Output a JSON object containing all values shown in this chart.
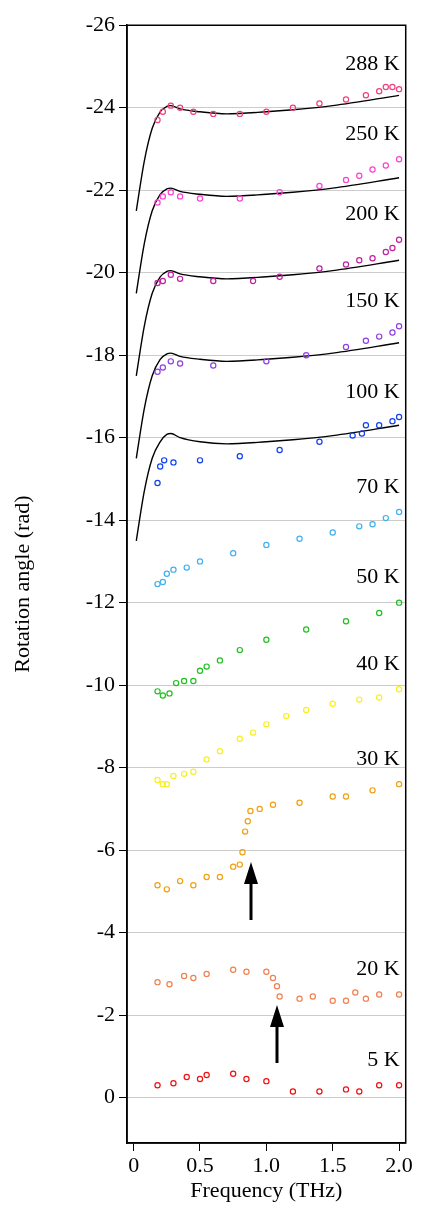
{
  "chart_data": {
    "type": "scatter",
    "xlabel": "Frequency (THz)",
    "ylabel": "Rotation angle (rad)",
    "xlim": [
      -0.05,
      2.05
    ],
    "ylim": [
      1.1,
      -26
    ],
    "xticks": [
      0,
      0.5,
      {
        "value": 1,
        "label": "1.0"
      },
      1.5,
      {
        "value": 2,
        "label": "2.0"
      }
    ],
    "yticks": [
      -26,
      -24,
      -22,
      -20,
      -18,
      -16,
      -14,
      -12,
      -10,
      -8,
      -6,
      -4,
      -2,
      0
    ],
    "grid": "y",
    "marker": "circle",
    "legend": false,
    "series": [
      {
        "name": "288 K",
        "color": "#f04080",
        "x": [
          0.18,
          0.22,
          0.28,
          0.35,
          0.45,
          0.6,
          0.8,
          1.0,
          1.2,
          1.4,
          1.6,
          1.75,
          1.85,
          1.9,
          1.95,
          2.0
        ],
        "values": [
          -23.7,
          -23.9,
          -24.05,
          -24.0,
          -23.9,
          -23.85,
          -23.85,
          -23.9,
          -24.0,
          -24.1,
          -24.2,
          -24.3,
          -24.4,
          -24.5,
          -24.5,
          -24.45
        ]
      },
      {
        "name": "250 K",
        "color": "#ff40d0",
        "x": [
          0.18,
          0.22,
          0.28,
          0.35,
          0.5,
          0.8,
          1.1,
          1.4,
          1.6,
          1.7,
          1.8,
          1.9,
          2.0
        ],
        "values": [
          -21.7,
          -21.85,
          -21.95,
          -21.85,
          -21.8,
          -21.8,
          -21.95,
          -22.1,
          -22.25,
          -22.35,
          -22.5,
          -22.6,
          -22.75
        ]
      },
      {
        "name": "200 K",
        "color": "#c020a0",
        "x": [
          0.18,
          0.22,
          0.28,
          0.35,
          0.6,
          0.9,
          1.1,
          1.4,
          1.6,
          1.7,
          1.8,
          1.9,
          1.95,
          2.0
        ],
        "values": [
          -19.75,
          -19.8,
          -19.95,
          -19.85,
          -19.8,
          -19.8,
          -19.9,
          -20.1,
          -20.2,
          -20.3,
          -20.35,
          -20.5,
          -20.6,
          -20.8
        ]
      },
      {
        "name": "150 K",
        "color": "#9040e0",
        "x": [
          0.18,
          0.22,
          0.28,
          0.35,
          0.6,
          1.0,
          1.3,
          1.6,
          1.75,
          1.85,
          1.95,
          2.0
        ],
        "values": [
          -17.6,
          -17.7,
          -17.85,
          -17.8,
          -17.75,
          -17.85,
          -18.0,
          -18.2,
          -18.35,
          -18.45,
          -18.55,
          -18.7
        ]
      },
      {
        "name": "100 K",
        "color": "#1040f0",
        "x": [
          0.18,
          0.2,
          0.23,
          0.3,
          0.5,
          0.8,
          1.1,
          1.4,
          1.65,
          1.72,
          1.75,
          1.85,
          1.95,
          2.0
        ],
        "values": [
          -14.9,
          -15.3,
          -15.45,
          -15.4,
          -15.45,
          -15.55,
          -15.7,
          -15.9,
          -16.05,
          -16.1,
          -16.3,
          -16.3,
          -16.4,
          -16.5
        ]
      },
      {
        "name": "70 K",
        "color": "#40b0f0",
        "x": [
          0.18,
          0.22,
          0.25,
          0.3,
          0.4,
          0.5,
          0.75,
          1.0,
          1.25,
          1.5,
          1.7,
          1.8,
          1.9,
          2.0
        ],
        "values": [
          -12.45,
          -12.5,
          -12.7,
          -12.8,
          -12.85,
          -13.0,
          -13.2,
          -13.4,
          -13.55,
          -13.7,
          -13.85,
          -13.9,
          -14.05,
          -14.2
        ]
      },
      {
        "name": "50 K",
        "color": "#20c020",
        "x": [
          0.18,
          0.22,
          0.27,
          0.32,
          0.38,
          0.45,
          0.5,
          0.55,
          0.65,
          0.8,
          1.0,
          1.3,
          1.6,
          1.85,
          2.0
        ],
        "values": [
          -9.85,
          -9.75,
          -9.8,
          -10.05,
          -10.1,
          -10.1,
          -10.35,
          -10.45,
          -10.6,
          -10.85,
          -11.1,
          -11.35,
          -11.55,
          -11.75,
          -12.0
        ]
      },
      {
        "name": "40 K",
        "color": "#f8f020",
        "x": [
          0.18,
          0.22,
          0.25,
          0.3,
          0.38,
          0.45,
          0.55,
          0.65,
          0.8,
          0.9,
          1.0,
          1.15,
          1.3,
          1.5,
          1.7,
          1.85,
          2.0
        ],
        "values": [
          -7.7,
          -7.6,
          -7.6,
          -7.8,
          -7.85,
          -7.9,
          -8.2,
          -8.4,
          -8.7,
          -8.85,
          -9.05,
          -9.25,
          -9.4,
          -9.55,
          -9.65,
          -9.7,
          -9.9
        ]
      },
      {
        "name": "30 K",
        "color": "#f0a010",
        "x": [
          0.18,
          0.25,
          0.35,
          0.45,
          0.55,
          0.65,
          0.75,
          0.8,
          0.82,
          0.84,
          0.86,
          0.88,
          0.95,
          1.05,
          1.25,
          1.5,
          1.6,
          1.8,
          2.0
        ],
        "values": [
          -5.15,
          -5.05,
          -5.25,
          -5.15,
          -5.35,
          -5.35,
          -5.6,
          -5.65,
          -5.95,
          -6.45,
          -6.7,
          -6.95,
          -7.0,
          -7.1,
          -7.15,
          -7.3,
          -7.3,
          -7.45,
          -7.6
        ]
      },
      {
        "name": "20 K",
        "color": "#f08050",
        "x": [
          0.18,
          0.27,
          0.38,
          0.45,
          0.55,
          0.75,
          0.85,
          1.0,
          1.05,
          1.08,
          1.1,
          1.25,
          1.35,
          1.5,
          1.6,
          1.67,
          1.75,
          1.85,
          2.0
        ],
        "values": [
          -2.8,
          -2.75,
          -2.95,
          -2.9,
          -3.0,
          -3.1,
          -3.05,
          -3.05,
          -2.9,
          -2.7,
          -2.45,
          -2.4,
          -2.45,
          -2.35,
          -2.35,
          -2.55,
          -2.4,
          -2.5,
          -2.5
        ]
      },
      {
        "name": "5 K",
        "color": "#f01010",
        "x": [
          0.18,
          0.3,
          0.4,
          0.5,
          0.55,
          0.75,
          0.85,
          1.0,
          1.2,
          1.4,
          1.6,
          1.7,
          1.85,
          2.0
        ],
        "values": [
          -0.3,
          -0.35,
          -0.5,
          -0.45,
          -0.55,
          -0.58,
          -0.45,
          -0.4,
          -0.15,
          -0.15,
          -0.2,
          -0.15,
          -0.3,
          -0.3
        ]
      },
      {
        "type": "line",
        "marker": "none",
        "color": "#000000",
        "x": [
          0.02,
          0.08,
          0.14,
          0.2,
          0.25,
          0.28,
          0.35,
          0.5,
          0.7,
          1.0,
          1.2,
          1.5,
          2.0
        ],
        "values": [
          -21.5,
          -22.7,
          -23.5,
          -23.9,
          -24.03,
          -24.05,
          -23.97,
          -23.9,
          -23.85,
          -23.9,
          -23.95,
          -24.05,
          -24.3
        ]
      },
      {
        "type": "line",
        "marker": "none",
        "color": "#000000",
        "x": [
          0.02,
          0.08,
          0.14,
          0.2,
          0.25,
          0.28,
          0.35,
          0.5,
          0.7,
          1.0,
          1.2,
          1.5,
          2.0
        ],
        "values": [
          -19.5,
          -20.7,
          -21.5,
          -21.9,
          -22.03,
          -22.05,
          -21.97,
          -21.9,
          -21.85,
          -21.9,
          -21.95,
          -22.05,
          -22.3
        ]
      },
      {
        "type": "line",
        "marker": "none",
        "color": "#000000",
        "x": [
          0.02,
          0.08,
          0.14,
          0.2,
          0.25,
          0.28,
          0.35,
          0.5,
          0.7,
          1.0,
          1.2,
          1.5,
          2.0
        ],
        "values": [
          -17.5,
          -18.7,
          -19.5,
          -19.9,
          -20.03,
          -20.05,
          -19.97,
          -19.9,
          -19.85,
          -19.9,
          -19.95,
          -20.05,
          -20.3
        ]
      },
      {
        "type": "line",
        "marker": "none",
        "color": "#000000",
        "x": [
          0.02,
          0.08,
          0.14,
          0.2,
          0.25,
          0.28,
          0.35,
          0.5,
          0.7,
          1.0,
          1.2,
          1.5,
          2.0
        ],
        "values": [
          -15.5,
          -16.7,
          -17.5,
          -17.9,
          -18.03,
          -18.05,
          -17.97,
          -17.9,
          -17.85,
          -17.9,
          -17.95,
          -18.05,
          -18.3
        ]
      },
      {
        "type": "line",
        "marker": "none",
        "color": "#000000",
        "x": [
          0.02,
          0.08,
          0.14,
          0.2,
          0.25,
          0.28,
          0.35,
          0.5,
          0.7,
          1.0,
          1.2,
          1.5,
          2.0
        ],
        "values": [
          -13.5,
          -14.7,
          -15.5,
          -15.9,
          -16.08,
          -16.1,
          -16.0,
          -15.9,
          -15.85,
          -15.9,
          -15.95,
          -16.05,
          -16.3
        ]
      }
    ]
  }
}
